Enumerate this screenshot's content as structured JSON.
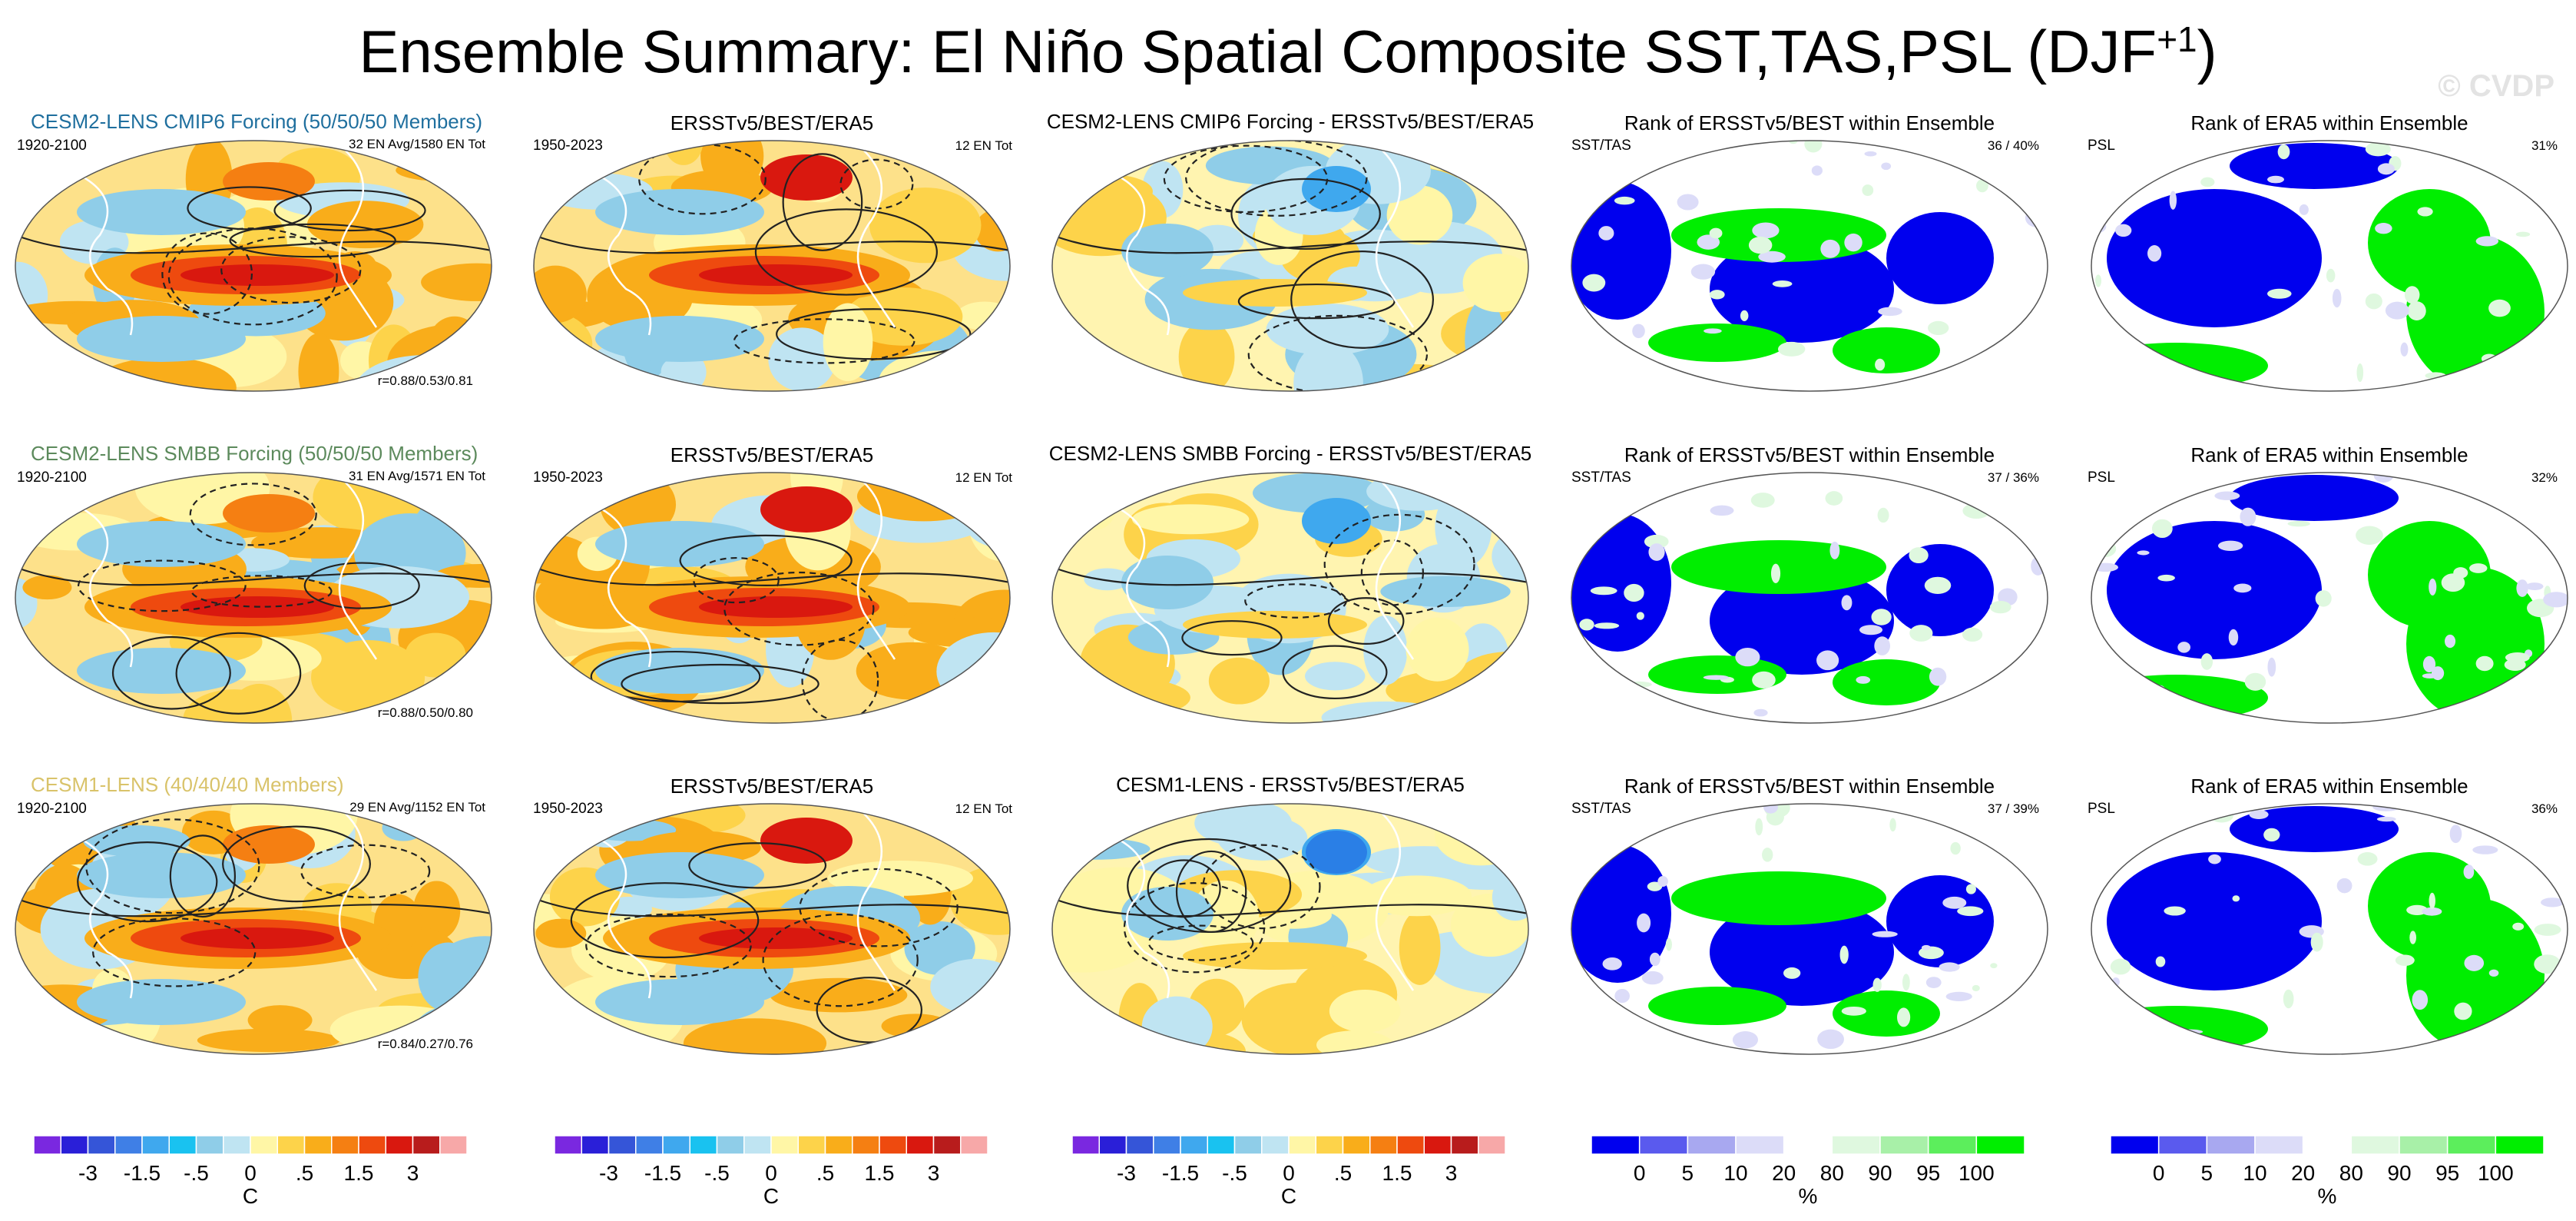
{
  "page": {
    "title_main": "Ensemble Summary: El Niño Spatial Composite SST,TAS,PSL (DJF",
    "title_sup": "+1",
    "title_close": ")",
    "watermark": "© CVDP"
  },
  "chart_data": {
    "type": "heatmap",
    "description_of_layout": "3 rows (models) x 5 columns of global map panels",
    "rows": [
      {
        "model": "CESM2-LENS CMIP6 Forcing (50/50/50 Members)",
        "model_color": "#1f6f9e",
        "period": "1920-2100",
        "ens_info": "32 EN Avg/1580 EN Tot",
        "pattern_corr": "r=0.88/0.53/0.81",
        "obs_title": "ERSSTv5/BEST/ERA5",
        "obs_period": "1950-2023",
        "obs_info": "12 EN Tot",
        "diff_title": "CESM2-LENS CMIP6 Forcing - ERSSTv5/BEST/ERA5",
        "rank1_title": "Rank of ERSSTv5/BEST within Ensemble",
        "rank1_label": "SST/TAS",
        "rank1_pct": "36 /  40%",
        "rank2_title": "Rank of ERA5 within Ensemble",
        "rank2_label": "PSL",
        "rank2_pct": "31%"
      },
      {
        "model": "CESM2-LENS SMBB Forcing (50/50/50 Members)",
        "model_color": "#5c8a5c",
        "period": "1920-2100",
        "ens_info": "31 EN Avg/1571 EN Tot",
        "pattern_corr": "r=0.88/0.50/0.80",
        "obs_title": "ERSSTv5/BEST/ERA5",
        "obs_period": "1950-2023",
        "obs_info": "12 EN Tot",
        "diff_title": "CESM2-LENS SMBB Forcing - ERSSTv5/BEST/ERA5",
        "rank1_title": "Rank of ERSSTv5/BEST within Ensemble",
        "rank1_label": "SST/TAS",
        "rank1_pct": "37 /  36%",
        "rank2_title": "Rank of ERA5 within Ensemble",
        "rank2_label": "PSL",
        "rank2_pct": "32%"
      },
      {
        "model": "CESM1-LENS (40/40/40 Members)",
        "model_color": "#d9c36a",
        "period": "1920-2100",
        "ens_info": "29 EN Avg/1152 EN Tot",
        "pattern_corr": "r=0.84/0.27/0.76",
        "obs_title": "ERSSTv5/BEST/ERA5",
        "obs_period": "1950-2023",
        "obs_info": "12 EN Tot",
        "diff_title": "CESM1-LENS - ERSSTv5/BEST/ERA5",
        "rank1_title": "Rank of ERSSTv5/BEST within Ensemble",
        "rank1_label": "SST/TAS",
        "rank1_pct": "37 /  39%",
        "rank2_title": "Rank of ERA5 within Ensemble",
        "rank2_label": "PSL",
        "rank2_pct": "36%"
      }
    ],
    "temp_colorbar": {
      "colors": [
        "#7a28e0",
        "#2a1fd8",
        "#3555d8",
        "#3f7fe6",
        "#3fa8ee",
        "#19c2f0",
        "#8fcde8",
        "#bfe4f2",
        "#fff6a6",
        "#fdd34a",
        "#f9ad1a",
        "#f57f12",
        "#ee4a0f",
        "#d9180f",
        "#b81c1c",
        "#f7a8a8"
      ],
      "tick_labels": [
        "-3",
        "-1.5",
        "-.5",
        "0",
        ".5",
        "1.5",
        "3"
      ],
      "tick_after_index": [
        1,
        3,
        5,
        7,
        9,
        11,
        13
      ],
      "unit": "C"
    },
    "rank_colorbar": {
      "colors": [
        "#0000ee",
        "#5a5aee",
        "#a8a8f0",
        "#dcdcf8",
        "#ffffff",
        "#dff8df",
        "#a8f0a8",
        "#5cee5c",
        "#00ee00"
      ],
      "tick_labels": [
        "0",
        "5",
        "10",
        "20",
        "80",
        "90",
        "95",
        "100"
      ],
      "tick_after_index": [
        0,
        1,
        2,
        3,
        4,
        5,
        6,
        7
      ],
      "unit": "%"
    },
    "colors": {
      "model_title_row1": "#1f6f9e",
      "model_title_row2": "#5c8a5c",
      "model_title_row3": "#d9c36a"
    }
  }
}
